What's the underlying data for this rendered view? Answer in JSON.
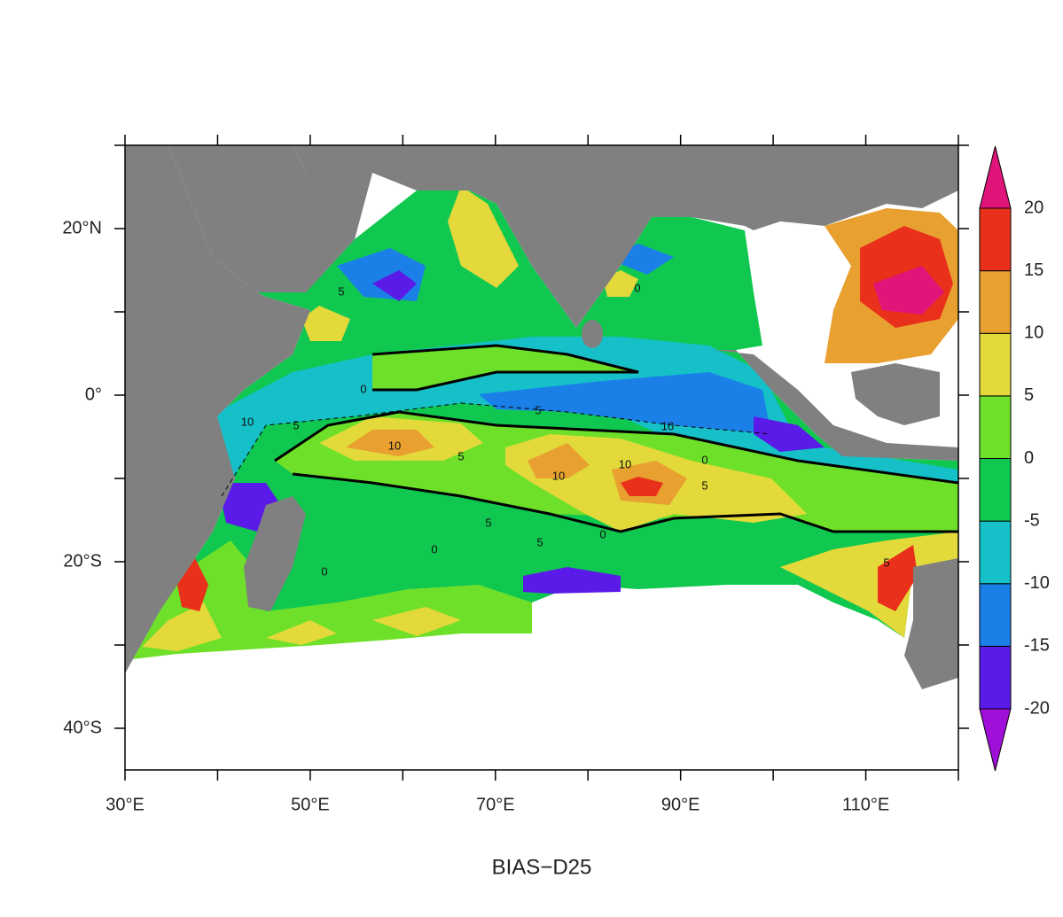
{
  "map": {
    "title": "BIAS−D25",
    "xlim": [
      30,
      120
    ],
    "ylim": [
      -45,
      30
    ],
    "xticks": [
      {
        "value": 30,
        "label": "30°E"
      },
      {
        "value": 50,
        "label": "50°E"
      },
      {
        "value": 70,
        "label": "70°E"
      },
      {
        "value": 90,
        "label": "90°E"
      },
      {
        "value": 110,
        "label": "110°E"
      }
    ],
    "x_minor_ticks": [
      40,
      60,
      80,
      100,
      120
    ],
    "yticks": [
      {
        "value": 20,
        "label": "20°N"
      },
      {
        "value": 0,
        "label": "0°"
      },
      {
        "value": -20,
        "label": "20°S"
      },
      {
        "value": -40,
        "label": "40°S"
      }
    ],
    "y_minor_ticks": [
      30,
      10,
      -10,
      -30
    ],
    "colorbar": {
      "levels": [
        -20,
        -15,
        -10,
        -5,
        0,
        5,
        10,
        15,
        20
      ],
      "colors": [
        "#a010d8",
        "#5a1ae8",
        "#1a80e8",
        "#15c0c8",
        "#10c850",
        "#6ee02a",
        "#e3d93a",
        "#e8a030",
        "#e8301a",
        "#e0157a"
      ]
    },
    "contour_labels": [
      "0",
      "5",
      "10",
      "10",
      "5",
      "10",
      "10",
      "0",
      "5",
      "5",
      "10",
      "5",
      "5",
      "0",
      "0",
      "0",
      "5",
      "5",
      "0"
    ]
  }
}
